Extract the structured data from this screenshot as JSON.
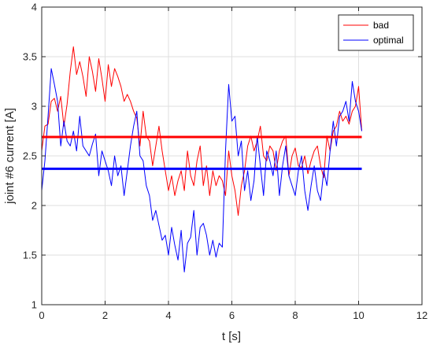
{
  "chart_data": {
    "type": "line",
    "title": "",
    "xlabel": "t [s]",
    "ylabel": "joint #6 current [A]",
    "xlim": [
      0,
      12
    ],
    "ylim": [
      1,
      4
    ],
    "xticks": [
      0,
      2,
      4,
      6,
      8,
      10,
      12
    ],
    "yticks": [
      1,
      1.5,
      2,
      2.5,
      3,
      3.5,
      4
    ],
    "xtick_labels": [
      "0",
      "2",
      "4",
      "6",
      "8",
      "10",
      "12"
    ],
    "ytick_labels": [
      "1",
      "1.5",
      "2",
      "2.5",
      "3",
      "3.5",
      "4"
    ],
    "grid": true,
    "legend_position": "top-right",
    "series": [
      {
        "name": "bad",
        "color": "#ff0000",
        "x": [
          0.0,
          0.1,
          0.2,
          0.3,
          0.4,
          0.5,
          0.6,
          0.7,
          0.8,
          0.9,
          1.0,
          1.1,
          1.2,
          1.3,
          1.4,
          1.5,
          1.6,
          1.7,
          1.8,
          1.9,
          2.0,
          2.1,
          2.2,
          2.3,
          2.4,
          2.5,
          2.6,
          2.7,
          2.8,
          2.9,
          3.0,
          3.1,
          3.2,
          3.3,
          3.4,
          3.5,
          3.6,
          3.7,
          3.8,
          3.9,
          4.0,
          4.1,
          4.2,
          4.3,
          4.4,
          4.5,
          4.6,
          4.7,
          4.8,
          4.9,
          5.0,
          5.1,
          5.2,
          5.3,
          5.4,
          5.5,
          5.6,
          5.7,
          5.8,
          5.9,
          6.0,
          6.1,
          6.2,
          6.3,
          6.4,
          6.5,
          6.6,
          6.7,
          6.8,
          6.9,
          7.0,
          7.1,
          7.2,
          7.3,
          7.4,
          7.5,
          7.6,
          7.7,
          7.8,
          7.9,
          8.0,
          8.1,
          8.2,
          8.3,
          8.4,
          8.5,
          8.6,
          8.7,
          8.8,
          8.9,
          9.0,
          9.1,
          9.2,
          9.3,
          9.4,
          9.5,
          9.6,
          9.7,
          9.8,
          9.9,
          10.0,
          10.1
        ],
        "values": [
          2.55,
          2.8,
          2.82,
          3.05,
          3.08,
          2.95,
          3.1,
          2.8,
          3.02,
          3.35,
          3.6,
          3.32,
          3.45,
          3.3,
          3.1,
          3.5,
          3.35,
          3.15,
          3.48,
          3.28,
          3.05,
          3.42,
          3.2,
          3.38,
          3.3,
          3.2,
          3.05,
          3.12,
          3.05,
          2.95,
          2.88,
          2.6,
          2.95,
          2.7,
          2.65,
          2.4,
          2.6,
          2.8,
          2.55,
          2.35,
          2.15,
          2.3,
          2.1,
          2.25,
          2.35,
          2.15,
          2.55,
          2.3,
          2.2,
          2.45,
          2.6,
          2.2,
          2.4,
          2.1,
          2.35,
          2.2,
          2.3,
          2.25,
          2.1,
          2.55,
          2.3,
          2.15,
          1.9,
          2.2,
          2.35,
          2.6,
          2.7,
          2.55,
          2.65,
          2.8,
          2.5,
          2.45,
          2.6,
          2.55,
          2.35,
          2.55,
          2.65,
          2.7,
          2.3,
          2.5,
          2.58,
          2.4,
          2.38,
          2.5,
          2.32,
          2.45,
          2.55,
          2.6,
          2.4,
          2.28,
          2.7,
          2.55,
          2.75,
          2.8,
          2.95,
          2.85,
          2.9,
          2.82,
          2.95,
          3.0,
          3.2,
          2.75
        ]
      },
      {
        "name": "optimal",
        "color": "#0000ff",
        "x": [
          0.0,
          0.1,
          0.2,
          0.3,
          0.4,
          0.5,
          0.6,
          0.7,
          0.8,
          0.9,
          1.0,
          1.1,
          1.2,
          1.3,
          1.4,
          1.5,
          1.6,
          1.7,
          1.8,
          1.9,
          2.0,
          2.1,
          2.2,
          2.3,
          2.4,
          2.5,
          2.6,
          2.7,
          2.8,
          2.9,
          3.0,
          3.1,
          3.2,
          3.3,
          3.4,
          3.5,
          3.6,
          3.7,
          3.8,
          3.9,
          4.0,
          4.1,
          4.2,
          4.3,
          4.4,
          4.5,
          4.6,
          4.7,
          4.8,
          4.9,
          5.0,
          5.1,
          5.2,
          5.3,
          5.4,
          5.5,
          5.6,
          5.7,
          5.8,
          5.9,
          6.0,
          6.1,
          6.2,
          6.3,
          6.4,
          6.5,
          6.6,
          6.7,
          6.8,
          6.9,
          7.0,
          7.1,
          7.2,
          7.3,
          7.4,
          7.5,
          7.6,
          7.7,
          7.8,
          7.9,
          8.0,
          8.1,
          8.2,
          8.3,
          8.4,
          8.5,
          8.6,
          8.7,
          8.8,
          8.9,
          9.0,
          9.1,
          9.2,
          9.3,
          9.4,
          9.5,
          9.6,
          9.7,
          9.8,
          9.9,
          10.0,
          10.1
        ],
        "values": [
          2.15,
          2.45,
          2.9,
          3.38,
          3.22,
          3.05,
          2.6,
          2.85,
          2.65,
          2.6,
          2.75,
          2.55,
          2.9,
          2.6,
          2.55,
          2.5,
          2.62,
          2.72,
          2.3,
          2.55,
          2.45,
          2.35,
          2.2,
          2.5,
          2.3,
          2.4,
          2.1,
          2.35,
          2.6,
          2.8,
          2.95,
          2.5,
          2.45,
          2.2,
          2.1,
          1.85,
          1.95,
          1.8,
          1.65,
          1.7,
          1.5,
          1.78,
          1.6,
          1.45,
          1.75,
          1.33,
          1.62,
          1.68,
          1.95,
          1.5,
          1.78,
          1.82,
          1.7,
          1.5,
          1.65,
          1.48,
          1.62,
          1.58,
          2.55,
          3.22,
          2.85,
          2.9,
          2.5,
          2.65,
          2.15,
          2.35,
          2.05,
          2.25,
          2.7,
          2.4,
          2.1,
          2.55,
          2.45,
          2.3,
          2.55,
          2.1,
          2.4,
          2.6,
          2.3,
          2.2,
          2.1,
          2.35,
          2.5,
          2.15,
          1.95,
          2.2,
          2.4,
          2.15,
          2.05,
          2.35,
          2.2,
          2.55,
          2.85,
          2.6,
          2.9,
          2.95,
          3.05,
          2.85,
          3.25,
          3.05,
          2.95,
          2.75
        ]
      },
      {
        "name": "",
        "color": "#ff0000",
        "style": "mean",
        "x": [
          0,
          10.1
        ],
        "values": [
          2.69,
          2.69
        ]
      },
      {
        "name": "",
        "color": "#0000ff",
        "style": "mean",
        "x": [
          0,
          10.1
        ],
        "values": [
          2.37,
          2.37
        ]
      }
    ],
    "legend": [
      {
        "label": "bad",
        "color": "#ff0000"
      },
      {
        "label": "optimal",
        "color": "#0000ff"
      }
    ]
  }
}
